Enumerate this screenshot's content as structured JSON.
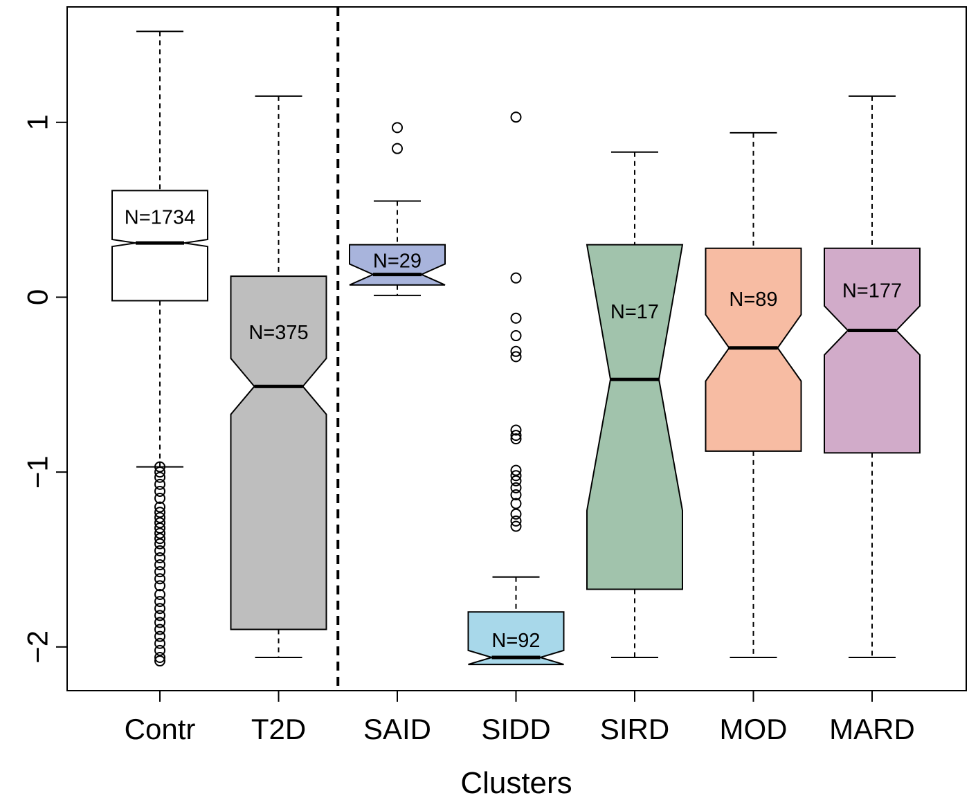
{
  "chart_data": {
    "type": "boxplot",
    "notched": true,
    "xlabel": "Clusters",
    "ylabel": "",
    "title": "",
    "ylim": [
      -2.25,
      1.66
    ],
    "yticks": [
      "-2",
      "-1",
      "0",
      "1"
    ],
    "ytick_values": [
      -2,
      -1,
      0,
      1
    ],
    "separator_after_category": "T2D",
    "categories": [
      "Contr",
      "T2D",
      "SAID",
      "SIDD",
      "SIRD",
      "MOD",
      "MARD"
    ],
    "boxes": [
      {
        "category": "Contr",
        "n_label": "N=1734",
        "label_y": 0.46,
        "color": "#ffffff",
        "q1": -0.02,
        "median": 0.31,
        "q3": 0.61,
        "notch_lo": 0.29,
        "notch_hi": 0.33,
        "whisker_lo": -0.97,
        "whisker_hi": 1.52,
        "outliers": [
          -0.97,
          -1.0,
          -1.03,
          -1.07,
          -1.11,
          -1.15,
          -1.2,
          -1.23,
          -1.26,
          -1.29,
          -1.32,
          -1.35,
          -1.38,
          -1.41,
          -1.45,
          -1.49,
          -1.53,
          -1.57,
          -1.61,
          -1.65,
          -1.7,
          -1.74,
          -1.78,
          -1.82,
          -1.86,
          -1.9,
          -1.94,
          -1.98,
          -2.02,
          -2.06,
          -2.08
        ]
      },
      {
        "category": "T2D",
        "n_label": "N=375",
        "label_y": -0.2,
        "color": "#bebebe",
        "q1": -1.9,
        "median": -0.51,
        "q3": 0.12,
        "notch_lo": -0.67,
        "notch_hi": -0.35,
        "whisker_lo": -2.06,
        "whisker_hi": 1.15,
        "outliers": []
      },
      {
        "category": "SAID",
        "n_label": "N=29",
        "label_y": 0.21,
        "color": "#a8b4dc",
        "q1": 0.07,
        "median": 0.13,
        "q3": 0.3,
        "notch_lo": 0.07,
        "notch_hi": 0.19,
        "whisker_lo": 0.01,
        "whisker_hi": 0.55,
        "outliers": [
          0.97,
          0.85
        ]
      },
      {
        "category": "SIDD",
        "n_label": "N=92",
        "label_y": -1.96,
        "color": "#a8d8ea",
        "q1": -2.1,
        "median": -2.06,
        "q3": -1.8,
        "notch_lo": -2.1,
        "notch_hi": -2.02,
        "whisker_lo": -2.06,
        "whisker_hi": -1.6,
        "outliers": [
          1.03,
          0.11,
          -0.12,
          -0.22,
          -0.31,
          -0.34,
          -0.76,
          -0.79,
          -0.81,
          -0.99,
          -1.02,
          -1.05,
          -1.09,
          -1.13,
          -1.18,
          -1.24,
          -1.28,
          -1.31
        ]
      },
      {
        "category": "SIRD",
        "n_label": "N=17",
        "label_y": -0.08,
        "color": "#a1c3ac",
        "q1": -1.67,
        "median": -0.47,
        "q3": 0.3,
        "notch_lo": -1.22,
        "notch_hi": 0.3,
        "whisker_lo": -2.06,
        "whisker_hi": 0.83,
        "outliers": []
      },
      {
        "category": "MOD",
        "n_label": "N=89",
        "label_y": -0.01,
        "color": "#f7bca3",
        "q1": -0.88,
        "median": -0.29,
        "q3": 0.28,
        "notch_lo": -0.48,
        "notch_hi": -0.1,
        "whisker_lo": -2.06,
        "whisker_hi": 0.94,
        "outliers": []
      },
      {
        "category": "MARD",
        "n_label": "N=177",
        "label_y": 0.04,
        "color": "#d1abc9",
        "q1": -0.89,
        "median": -0.19,
        "q3": 0.28,
        "notch_lo": -0.33,
        "notch_hi": -0.05,
        "whisker_lo": -2.06,
        "whisker_hi": 1.15,
        "outliers": []
      }
    ]
  }
}
